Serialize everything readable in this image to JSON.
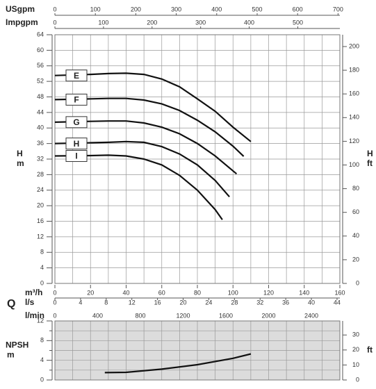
{
  "chart_data": [
    {
      "type": "line",
      "y_label": "H",
      "y_unit": "m",
      "y2_label": "H",
      "y2_unit": "ft",
      "ylim": [
        0,
        64
      ],
      "yticks": [
        0,
        4,
        8,
        12,
        16,
        20,
        24,
        28,
        32,
        36,
        40,
        44,
        48,
        52,
        56,
        60,
        64
      ],
      "y2lim": [
        0,
        209.97
      ],
      "y2ticks": [
        0,
        20,
        40,
        60,
        80,
        100,
        120,
        140,
        160,
        180,
        200
      ],
      "q_label": "Q",
      "xlim": [
        0,
        160
      ],
      "x_label": "m³/h",
      "xticks": [
        0,
        20,
        40,
        60,
        80,
        100,
        120,
        140,
        160
      ],
      "xminor": [
        10,
        30,
        50,
        70,
        90,
        110,
        130,
        150
      ],
      "top_axes": [
        {
          "label": "USgpm",
          "xlim": [
            0,
            704.5
          ],
          "xticks": [
            0,
            100,
            200,
            300,
            400,
            500,
            600,
            700
          ]
        },
        {
          "label": "Impgpm",
          "xlim": [
            0,
            586.6
          ],
          "xticks": [
            0,
            100,
            200,
            300,
            400,
            500
          ]
        }
      ],
      "bottom_axes": [
        {
          "label": "l/s",
          "xlim": [
            0,
            44.44
          ],
          "xticks": [
            0,
            4,
            8,
            12,
            16,
            20,
            24,
            28,
            32,
            36,
            40,
            44
          ]
        }
      ],
      "grid": true,
      "series": [
        {
          "name": "E",
          "color": "#111111",
          "x": [
            0,
            20,
            30,
            40,
            50,
            60,
            70,
            80,
            90,
            100,
            110
          ],
          "values": [
            53.5,
            53.8,
            54,
            54.1,
            53.8,
            52.6,
            50.6,
            47.5,
            44.3,
            40.2,
            36.5
          ]
        },
        {
          "name": "F",
          "color": "#111111",
          "x": [
            0,
            20,
            30,
            40,
            50,
            60,
            70,
            80,
            90,
            100,
            106
          ],
          "values": [
            47.3,
            47.5,
            47.6,
            47.6,
            47.2,
            46.2,
            44.5,
            42,
            39,
            35.3,
            32.7
          ]
        },
        {
          "name": "G",
          "color": "#111111",
          "x": [
            0,
            20,
            30,
            40,
            50,
            60,
            70,
            80,
            90,
            102
          ],
          "values": [
            41.5,
            41.7,
            41.8,
            41.8,
            41.3,
            40.2,
            38.5,
            36,
            32.8,
            28.2
          ]
        },
        {
          "name": "H",
          "color": "#111111",
          "x": [
            0,
            20,
            30,
            40,
            50,
            60,
            70,
            80,
            90,
            98
          ],
          "values": [
            36,
            36.2,
            36.3,
            36.5,
            36.3,
            35.2,
            33.3,
            30.5,
            26.5,
            22.3
          ]
        },
        {
          "name": "I",
          "color": "#111111",
          "x": [
            0,
            20,
            30,
            40,
            50,
            60,
            70,
            80,
            90,
            94
          ],
          "values": [
            32.8,
            32.9,
            33,
            32.8,
            32,
            30.5,
            27.8,
            24,
            19,
            16.4
          ]
        }
      ]
    },
    {
      "type": "line",
      "y_label": "NPSH",
      "y_unit": "m",
      "y2_unit": "ft",
      "ylim": [
        0,
        12
      ],
      "yticks": [
        0,
        4,
        8,
        12
      ],
      "yminor": [
        2,
        6,
        10
      ],
      "y2lim": [
        0,
        39.37
      ],
      "y2ticks": [
        0,
        10,
        20,
        30
      ],
      "xlim": [
        0,
        160
      ],
      "xminor": [
        0,
        10,
        20,
        30,
        40,
        50,
        60,
        70,
        80,
        90,
        100,
        110,
        120,
        130,
        140,
        150,
        160
      ],
      "top_axes": [
        {
          "label": "l/min",
          "xlim": [
            0,
            2666.7
          ],
          "xticks": [
            0,
            400,
            800,
            1200,
            1600,
            2000,
            2400
          ]
        }
      ],
      "grid": true,
      "background": "#dcdcdc",
      "series": [
        {
          "name": "NPSH",
          "color": "#111111",
          "x": [
            28,
            40,
            60,
            80,
            100,
            110
          ],
          "values": [
            1.5,
            1.55,
            2.2,
            3.1,
            4.4,
            5.3
          ]
        }
      ]
    }
  ]
}
